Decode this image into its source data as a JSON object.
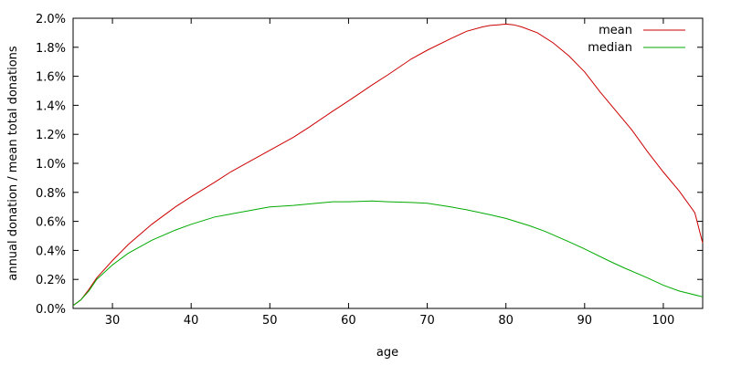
{
  "chart_data": {
    "type": "line",
    "title": "",
    "xlabel": "age",
    "ylabel": "annual donation / mean total donations",
    "xlim": [
      25,
      105
    ],
    "ylim": [
      0,
      2.0
    ],
    "x_ticks": [
      30,
      40,
      50,
      60,
      70,
      80,
      90,
      100
    ],
    "x_tick_labels": [
      "30",
      "40",
      "50",
      "60",
      "70",
      "80",
      "90",
      "100"
    ],
    "y_ticks": [
      0,
      0.2,
      0.4,
      0.6,
      0.8,
      1.0,
      1.2,
      1.4,
      1.6,
      1.8,
      2.0
    ],
    "y_tick_labels": [
      "0.0%",
      "0.2%",
      "0.4%",
      "0.6%",
      "0.8%",
      "1.0%",
      "1.2%",
      "1.4%",
      "1.6%",
      "1.8%",
      "2.0%"
    ],
    "y_unit": "percent",
    "grid": false,
    "legend_position": "top-right",
    "series": [
      {
        "name": "mean",
        "color": "#cc0000",
        "x": [
          25,
          26,
          27,
          28,
          30,
          32,
          35,
          38,
          40,
          43,
          45,
          48,
          50,
          53,
          55,
          58,
          60,
          63,
          65,
          68,
          70,
          73,
          75,
          77,
          78,
          79,
          80,
          81,
          82,
          84,
          86,
          88,
          90,
          92,
          94,
          96,
          98,
          100,
          102,
          104,
          105
        ],
        "y": [
          0.02,
          0.06,
          0.13,
          0.21,
          0.33,
          0.44,
          0.58,
          0.7,
          0.77,
          0.87,
          0.94,
          1.03,
          1.09,
          1.18,
          1.25,
          1.36,
          1.43,
          1.54,
          1.61,
          1.72,
          1.78,
          1.86,
          1.91,
          1.94,
          1.95,
          1.955,
          1.96,
          1.955,
          1.94,
          1.9,
          1.83,
          1.74,
          1.63,
          1.49,
          1.36,
          1.23,
          1.08,
          0.94,
          0.81,
          0.66,
          0.45
        ]
      },
      {
        "name": "median",
        "color": "#00aa00",
        "x": [
          25,
          26,
          27,
          28,
          30,
          32,
          35,
          38,
          40,
          43,
          45,
          48,
          50,
          53,
          55,
          58,
          60,
          63,
          65,
          68,
          70,
          73,
          75,
          78,
          80,
          83,
          85,
          88,
          90,
          93,
          95,
          98,
          100,
          102,
          105
        ],
        "y": [
          0.02,
          0.06,
          0.12,
          0.2,
          0.3,
          0.38,
          0.47,
          0.54,
          0.58,
          0.63,
          0.65,
          0.68,
          0.7,
          0.71,
          0.72,
          0.735,
          0.735,
          0.74,
          0.735,
          0.73,
          0.725,
          0.7,
          0.68,
          0.645,
          0.62,
          0.57,
          0.53,
          0.46,
          0.41,
          0.33,
          0.28,
          0.21,
          0.16,
          0.12,
          0.08
        ]
      }
    ]
  }
}
